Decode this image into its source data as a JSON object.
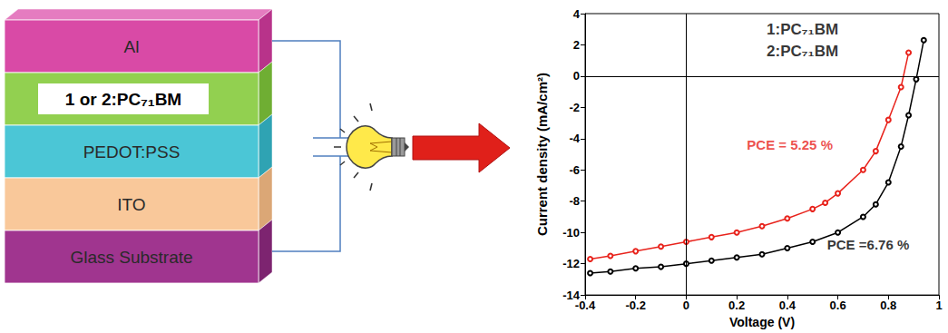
{
  "diagram": {
    "layers": [
      "Al",
      "1 or 2:PC₇₁BM",
      "PEDOT:PSS",
      "ITO",
      "Glass Substrate"
    ]
  },
  "chart_data": {
    "type": "line",
    "x_label": "Voltage (V)",
    "y_label": "Current density (mA/cm²)",
    "xlim": [
      -0.4,
      1
    ],
    "xticks": [
      -0.4,
      -0.2,
      0,
      0.2,
      0.4,
      0.6,
      0.8,
      1
    ],
    "ylim": [
      -14,
      4
    ],
    "yticks": [
      -14,
      -12,
      -10,
      -8,
      -6,
      -4,
      -2,
      0,
      2,
      4
    ],
    "grid": false,
    "marker": "circle",
    "series": [
      {
        "color": "#e8231c",
        "x": [
          -0.38,
          -0.3,
          -0.2,
          -0.1,
          0,
          0.1,
          0.2,
          0.3,
          0.4,
          0.5,
          0.55,
          0.6,
          0.7,
          0.75,
          0.8,
          0.85,
          0.88
        ],
        "values": [
          -11.7,
          -11.5,
          -11.2,
          -10.9,
          -10.6,
          -10.3,
          -10.0,
          -9.6,
          -9.1,
          -8.5,
          -8.1,
          -7.5,
          -6.0,
          -4.8,
          -2.8,
          -0.7,
          1.5
        ]
      },
      {
        "color": "#000000",
        "x": [
          -0.38,
          -0.3,
          -0.2,
          -0.1,
          0,
          0.1,
          0.2,
          0.3,
          0.4,
          0.5,
          0.6,
          0.7,
          0.75,
          0.8,
          0.85,
          0.88,
          0.91,
          0.94
        ],
        "values": [
          -12.6,
          -12.5,
          -12.3,
          -12.2,
          -12.0,
          -11.8,
          -11.6,
          -11.4,
          -11.0,
          -10.6,
          -10.0,
          -9.0,
          -8.2,
          -6.8,
          -4.5,
          -2.5,
          -0.2,
          2.3
        ]
      }
    ],
    "annotations": [
      {
        "text": "1:PC₇₁BM",
        "x": 0.46,
        "y": 3.0
      },
      {
        "text": "2:PC₇₁BM",
        "x": 0.46,
        "y": 1.6
      },
      {
        "text": "PCE = 5.25 %",
        "x": 0.41,
        "y": -4.4,
        "color": "#e8231c"
      },
      {
        "text": "PCE =6.76 %",
        "x": 0.72,
        "y": -10.8,
        "color": "#000000"
      }
    ]
  }
}
